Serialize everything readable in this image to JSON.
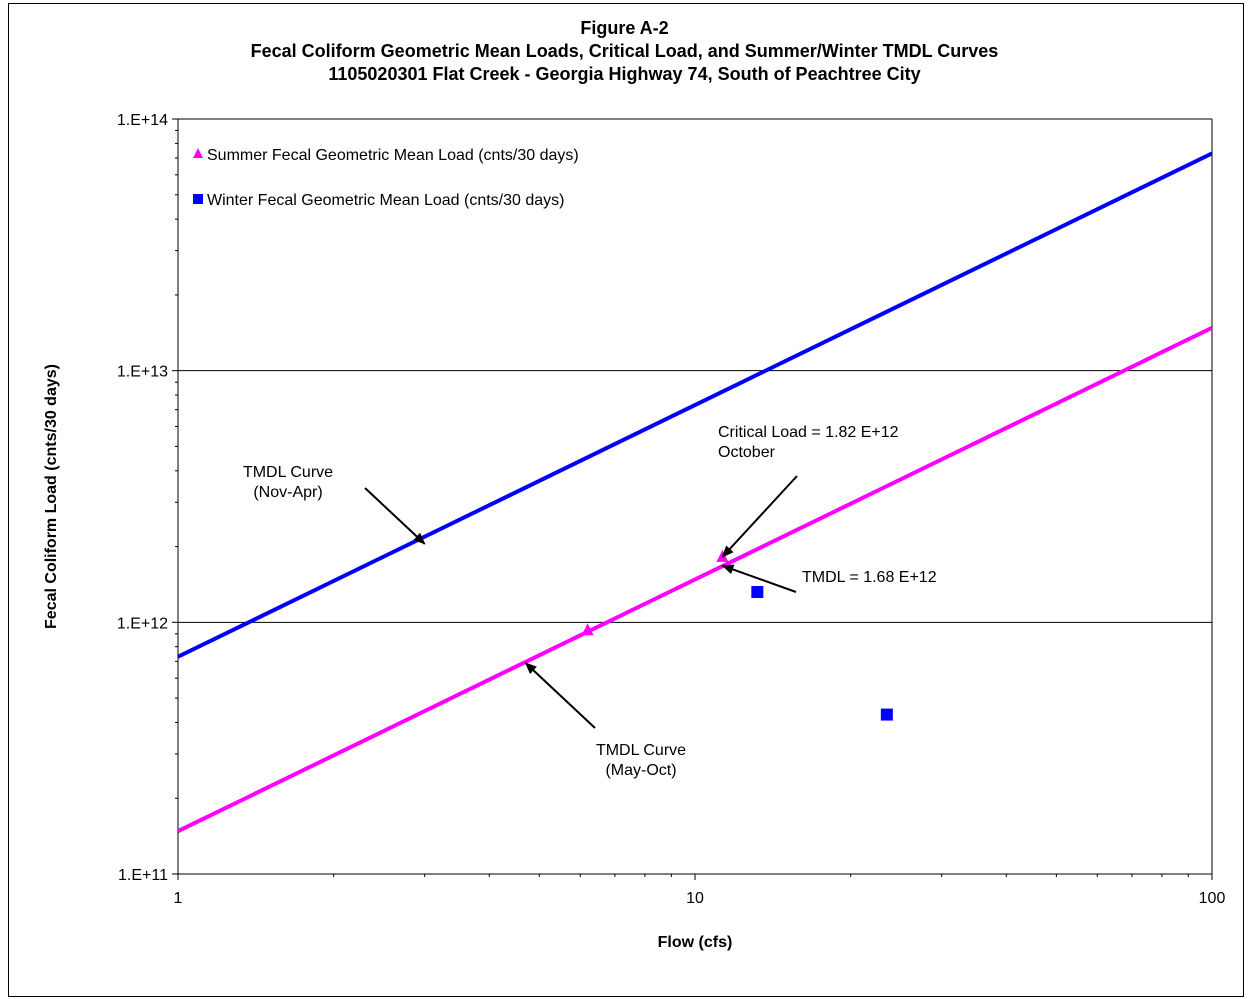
{
  "chart_data": {
    "type": "scatter",
    "title": "Figure A-2",
    "subtitle": [
      "Fecal Coliform Geometric Mean Loads, Critical Load, and Summer/Winter TMDL Curves",
      "1105020301 Flat Creek - Georgia Highway 74, South of Peachtree City"
    ],
    "xlabel": "Flow    (cfs)",
    "ylabel": "Fecal Coliform Load  (cnts/30 days)",
    "x_scale": "log",
    "y_scale": "log",
    "xlim": [
      1,
      100
    ],
    "ylim": [
      100000000000.0,
      100000000000000.0
    ],
    "x_ticks": [
      {
        "value": 1,
        "label": "1"
      },
      {
        "value": 10,
        "label": "10"
      },
      {
        "value": 100,
        "label": "100"
      }
    ],
    "y_ticks": [
      {
        "value": 100000000000.0,
        "label": "1.E+11"
      },
      {
        "value": 1000000000000.0,
        "label": "1.E+12"
      },
      {
        "value": 10000000000000.0,
        "label": "1.E+13"
      },
      {
        "value": 100000000000000.0,
        "label": "1.E+14"
      }
    ],
    "grid": "horizontal major",
    "legend_position": "top-left",
    "series": [
      {
        "name": "Summer Fecal Geometric Mean Load (cnts/30 days)",
        "kind": "points",
        "marker": "triangle",
        "color": "#ff00ff",
        "x": [
          6.2,
          11.3
        ],
        "y": [
          930000000000.0,
          1820000000000.0
        ]
      },
      {
        "name": "Winter Fecal Geometric Mean Load (cnts/30 days)",
        "kind": "points",
        "marker": "square",
        "color": "#0000ff",
        "x": [
          13.2,
          23.5
        ],
        "y": [
          1320000000000.0,
          430000000000.0
        ]
      },
      {
        "kind": "line",
        "color": "#0000ff",
        "x": [
          1,
          100
        ],
        "y": [
          730000000000.0,
          73000000000000.0
        ]
      },
      {
        "kind": "line",
        "color": "#ff00ff",
        "x": [
          1,
          100
        ],
        "y": [
          148000000000.0,
          14800000000000.0
        ]
      }
    ],
    "annotations": [
      {
        "id": "tmdl-nov-apr",
        "lines": [
          "TMDL Curve",
          "(Nov-Apr)"
        ],
        "arrow_to": {
          "x": 3.0,
          "y": 2050000000000.0
        }
      },
      {
        "id": "critical-load",
        "lines": [
          "Critical Load = 1.82 E+12",
          "October"
        ],
        "arrow_to": {
          "x": 11.3,
          "y": 1820000000000.0
        }
      },
      {
        "id": "tmdl-value",
        "lines": [
          "TMDL = 1.68 E+12"
        ],
        "arrow_to": {
          "x": 11.3,
          "y": 1680000000000.0
        }
      },
      {
        "id": "tmdl-may-oct",
        "lines": [
          "TMDL Curve",
          "(May-Oct)"
        ],
        "arrow_to": {
          "x": 4.7,
          "y": 690000000000.0
        }
      }
    ]
  }
}
